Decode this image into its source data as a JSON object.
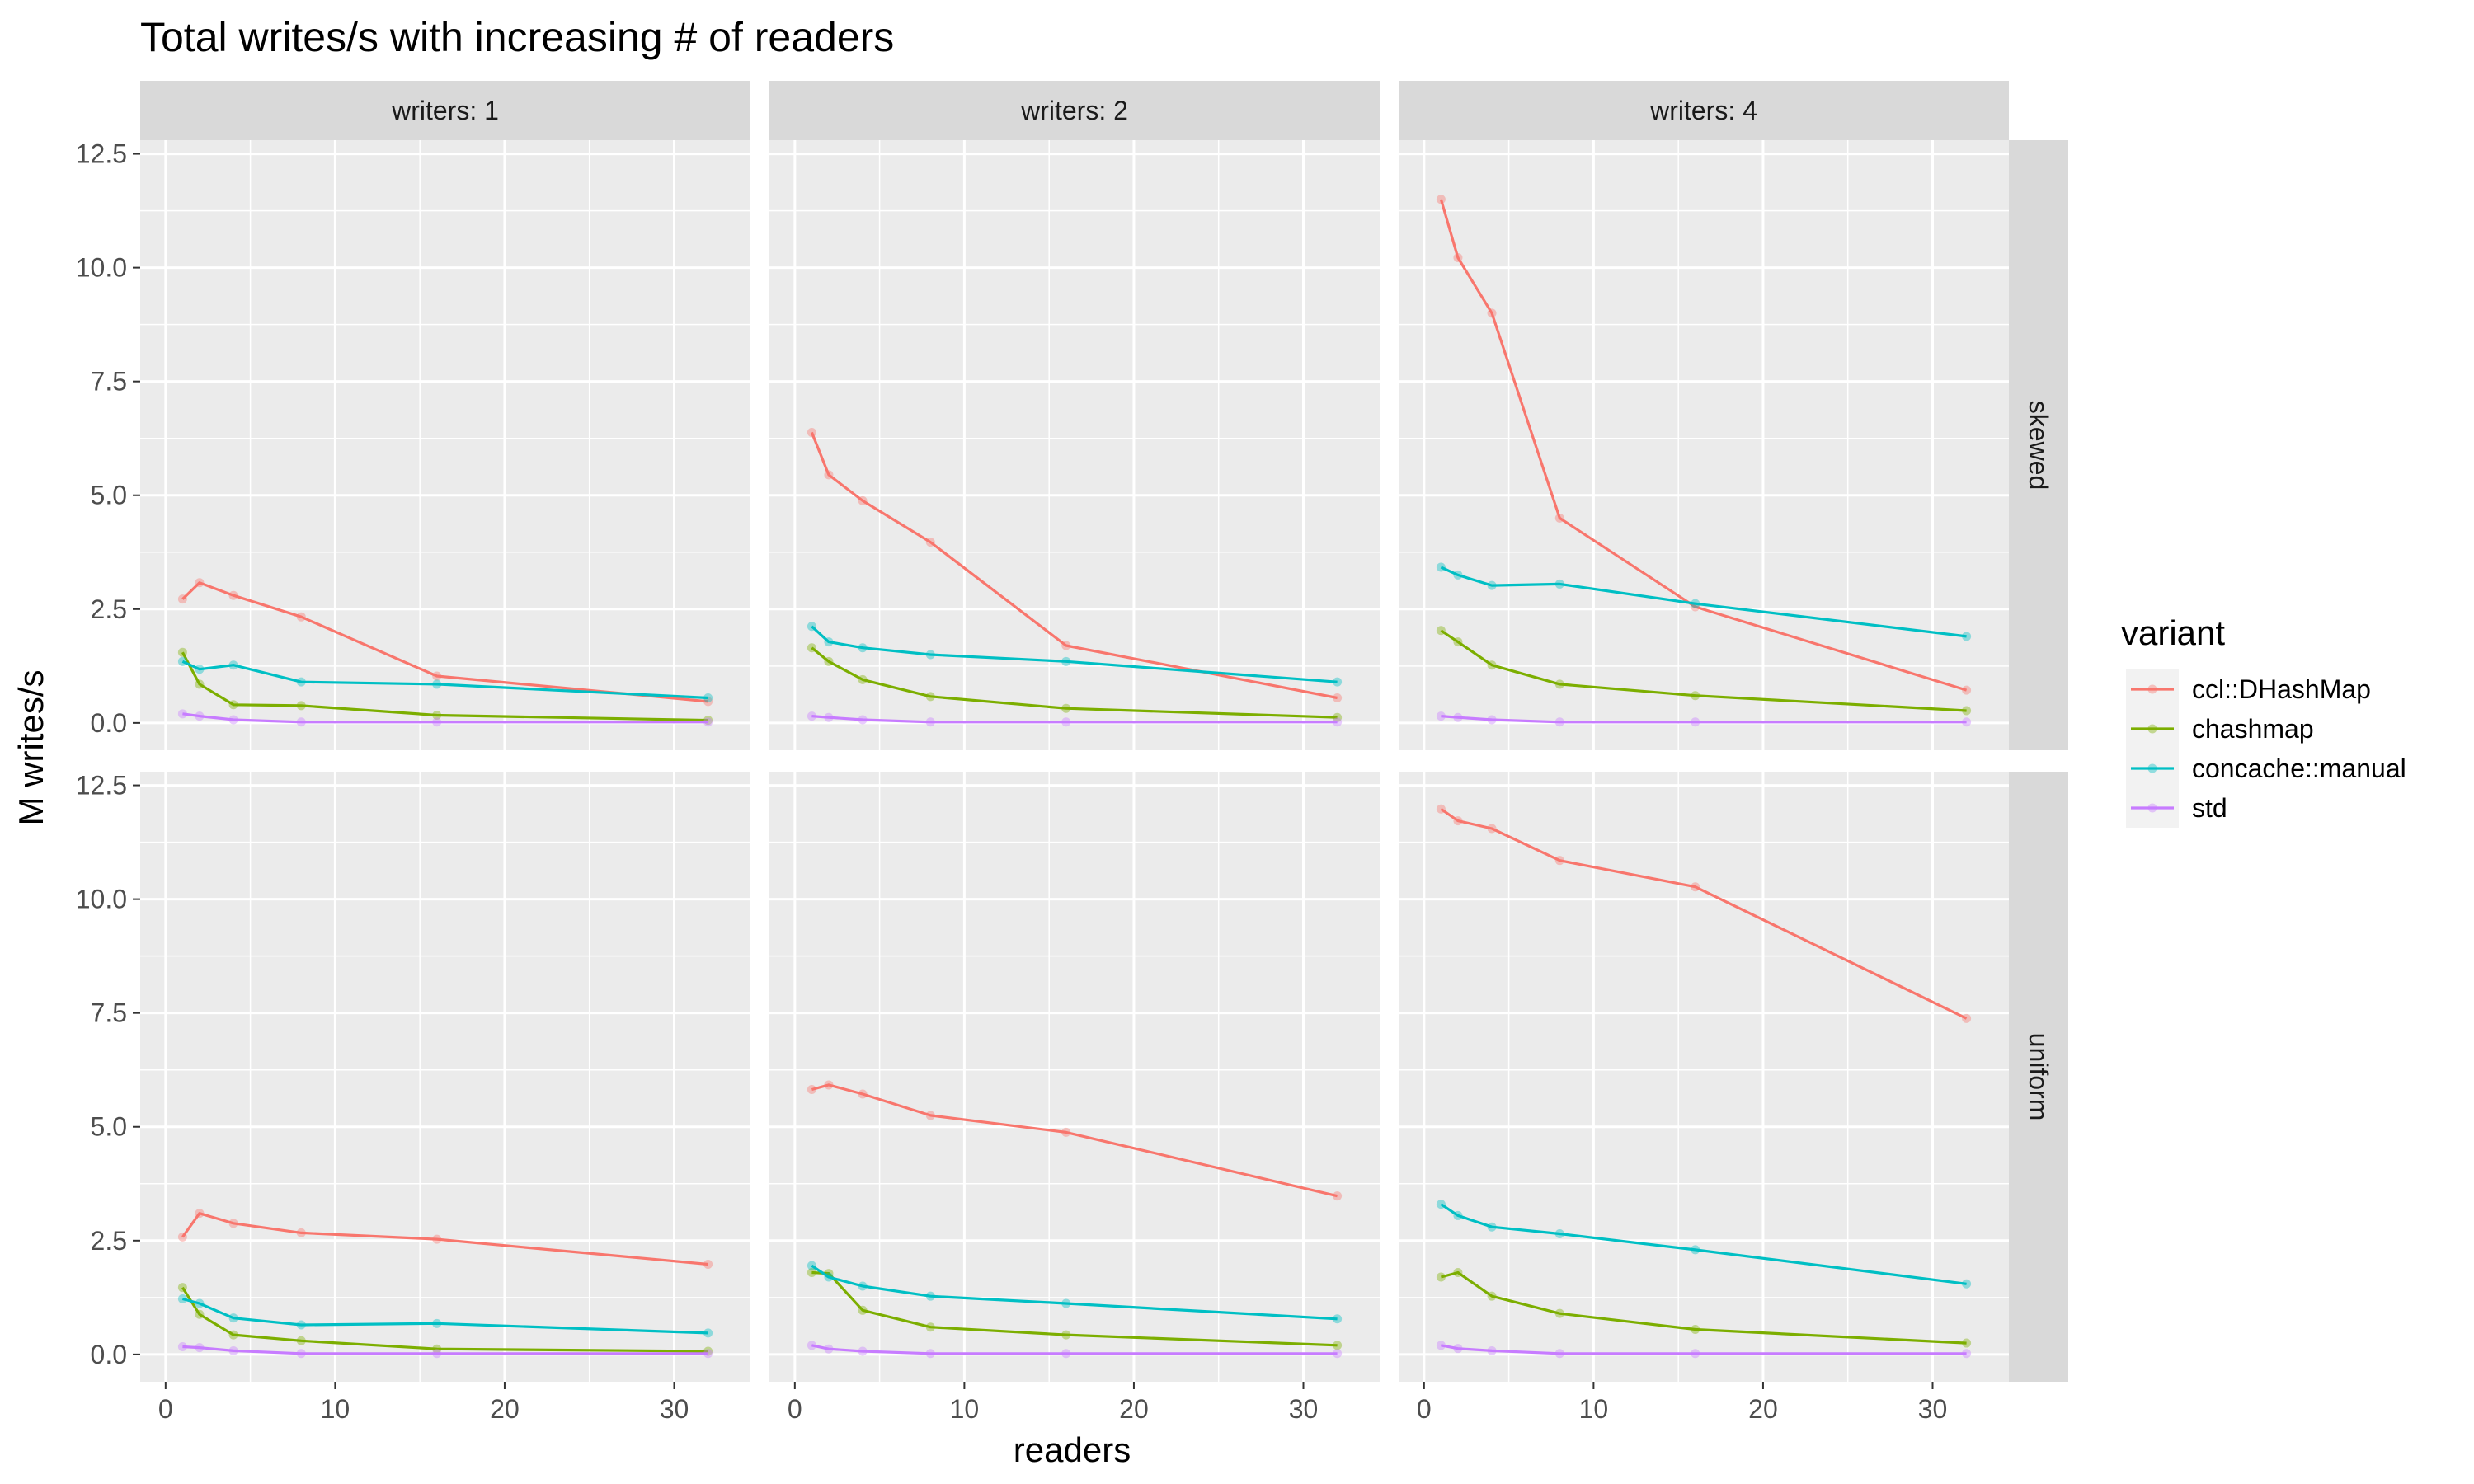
{
  "chart_data": {
    "type": "line",
    "title": "Total writes/s with increasing # of readers",
    "xlabel": "readers",
    "ylabel": "M writes/s",
    "x": [
      1,
      2,
      4,
      8,
      16,
      32
    ],
    "xlim": [
      -1.5,
      34.5
    ],
    "ylim": [
      -0.6,
      12.8
    ],
    "x_ticks": [
      0,
      10,
      20,
      30
    ],
    "y_ticks": [
      0.0,
      2.5,
      5.0,
      7.5,
      10.0,
      12.5
    ],
    "y_tick_labels": [
      "0.0",
      "2.5",
      "5.0",
      "7.5",
      "10.0",
      "12.5"
    ],
    "column_facets": [
      "writers: 1",
      "writers: 2",
      "writers: 4"
    ],
    "row_facets": [
      "skewed",
      "uniform"
    ],
    "grid": true,
    "legend": {
      "title": "variant",
      "position": "right",
      "entries": [
        "ccl::DHashMap",
        "chashmap",
        "concache::manual",
        "std"
      ]
    },
    "colors": {
      "ccl::DHashMap": "#F8766D",
      "chashmap": "#7CAE00",
      "concache::manual": "#00BFC4",
      "std": "#C77CFF"
    },
    "panels": [
      {
        "row": "skewed",
        "column": "writers: 1",
        "series": [
          {
            "name": "ccl::DHashMap",
            "values": [
              2.72,
              3.08,
              2.8,
              2.33,
              1.03,
              0.47
            ]
          },
          {
            "name": "chashmap",
            "values": [
              1.55,
              0.85,
              0.4,
              0.38,
              0.17,
              0.06
            ]
          },
          {
            "name": "concache::manual",
            "values": [
              1.35,
              1.18,
              1.27,
              0.9,
              0.85,
              0.55
            ]
          },
          {
            "name": "std",
            "values": [
              0.2,
              0.15,
              0.07,
              0.02,
              0.02,
              0.02
            ]
          }
        ]
      },
      {
        "row": "skewed",
        "column": "writers: 2",
        "series": [
          {
            "name": "ccl::DHashMap",
            "values": [
              6.38,
              5.45,
              4.88,
              3.97,
              1.7,
              0.55
            ]
          },
          {
            "name": "chashmap",
            "values": [
              1.65,
              1.35,
              0.95,
              0.58,
              0.32,
              0.12
            ]
          },
          {
            "name": "concache::manual",
            "values": [
              2.12,
              1.78,
              1.65,
              1.5,
              1.35,
              0.9
            ]
          },
          {
            "name": "std",
            "values": [
              0.15,
              0.12,
              0.07,
              0.02,
              0.02,
              0.02
            ]
          }
        ]
      },
      {
        "row": "skewed",
        "column": "writers: 4",
        "series": [
          {
            "name": "ccl::DHashMap",
            "values": [
              11.5,
              10.22,
              9.0,
              4.5,
              2.55,
              0.72
            ]
          },
          {
            "name": "chashmap",
            "values": [
              2.03,
              1.78,
              1.27,
              0.85,
              0.6,
              0.27
            ]
          },
          {
            "name": "concache::manual",
            "values": [
              3.42,
              3.25,
              3.02,
              3.05,
              2.62,
              1.9
            ]
          },
          {
            "name": "std",
            "values": [
              0.15,
              0.12,
              0.07,
              0.02,
              0.02,
              0.02
            ]
          }
        ]
      },
      {
        "row": "uniform",
        "column": "writers: 1",
        "series": [
          {
            "name": "ccl::DHashMap",
            "values": [
              2.58,
              3.1,
              2.88,
              2.67,
              2.53,
              1.98
            ]
          },
          {
            "name": "chashmap",
            "values": [
              1.47,
              0.88,
              0.43,
              0.3,
              0.12,
              0.07
            ]
          },
          {
            "name": "concache::manual",
            "values": [
              1.22,
              1.12,
              0.8,
              0.65,
              0.68,
              0.47
            ]
          },
          {
            "name": "std",
            "values": [
              0.17,
              0.15,
              0.08,
              0.02,
              0.02,
              0.02
            ]
          }
        ]
      },
      {
        "row": "uniform",
        "column": "writers: 2",
        "series": [
          {
            "name": "ccl::DHashMap",
            "values": [
              5.82,
              5.92,
              5.72,
              5.25,
              4.88,
              3.48
            ]
          },
          {
            "name": "chashmap",
            "values": [
              1.8,
              1.78,
              0.97,
              0.6,
              0.43,
              0.2
            ]
          },
          {
            "name": "concache::manual",
            "values": [
              1.95,
              1.7,
              1.5,
              1.28,
              1.12,
              0.78
            ]
          },
          {
            "name": "std",
            "values": [
              0.2,
              0.12,
              0.07,
              0.02,
              0.02,
              0.02
            ]
          }
        ]
      },
      {
        "row": "uniform",
        "column": "writers: 4",
        "series": [
          {
            "name": "ccl::DHashMap",
            "values": [
              11.98,
              11.72,
              11.55,
              10.85,
              10.27,
              7.38
            ]
          },
          {
            "name": "chashmap",
            "values": [
              1.7,
              1.8,
              1.28,
              0.9,
              0.55,
              0.25
            ]
          },
          {
            "name": "concache::manual",
            "values": [
              3.3,
              3.05,
              2.8,
              2.65,
              2.3,
              1.55
            ]
          },
          {
            "name": "std",
            "values": [
              0.2,
              0.13,
              0.08,
              0.02,
              0.02,
              0.02
            ]
          }
        ]
      }
    ]
  }
}
